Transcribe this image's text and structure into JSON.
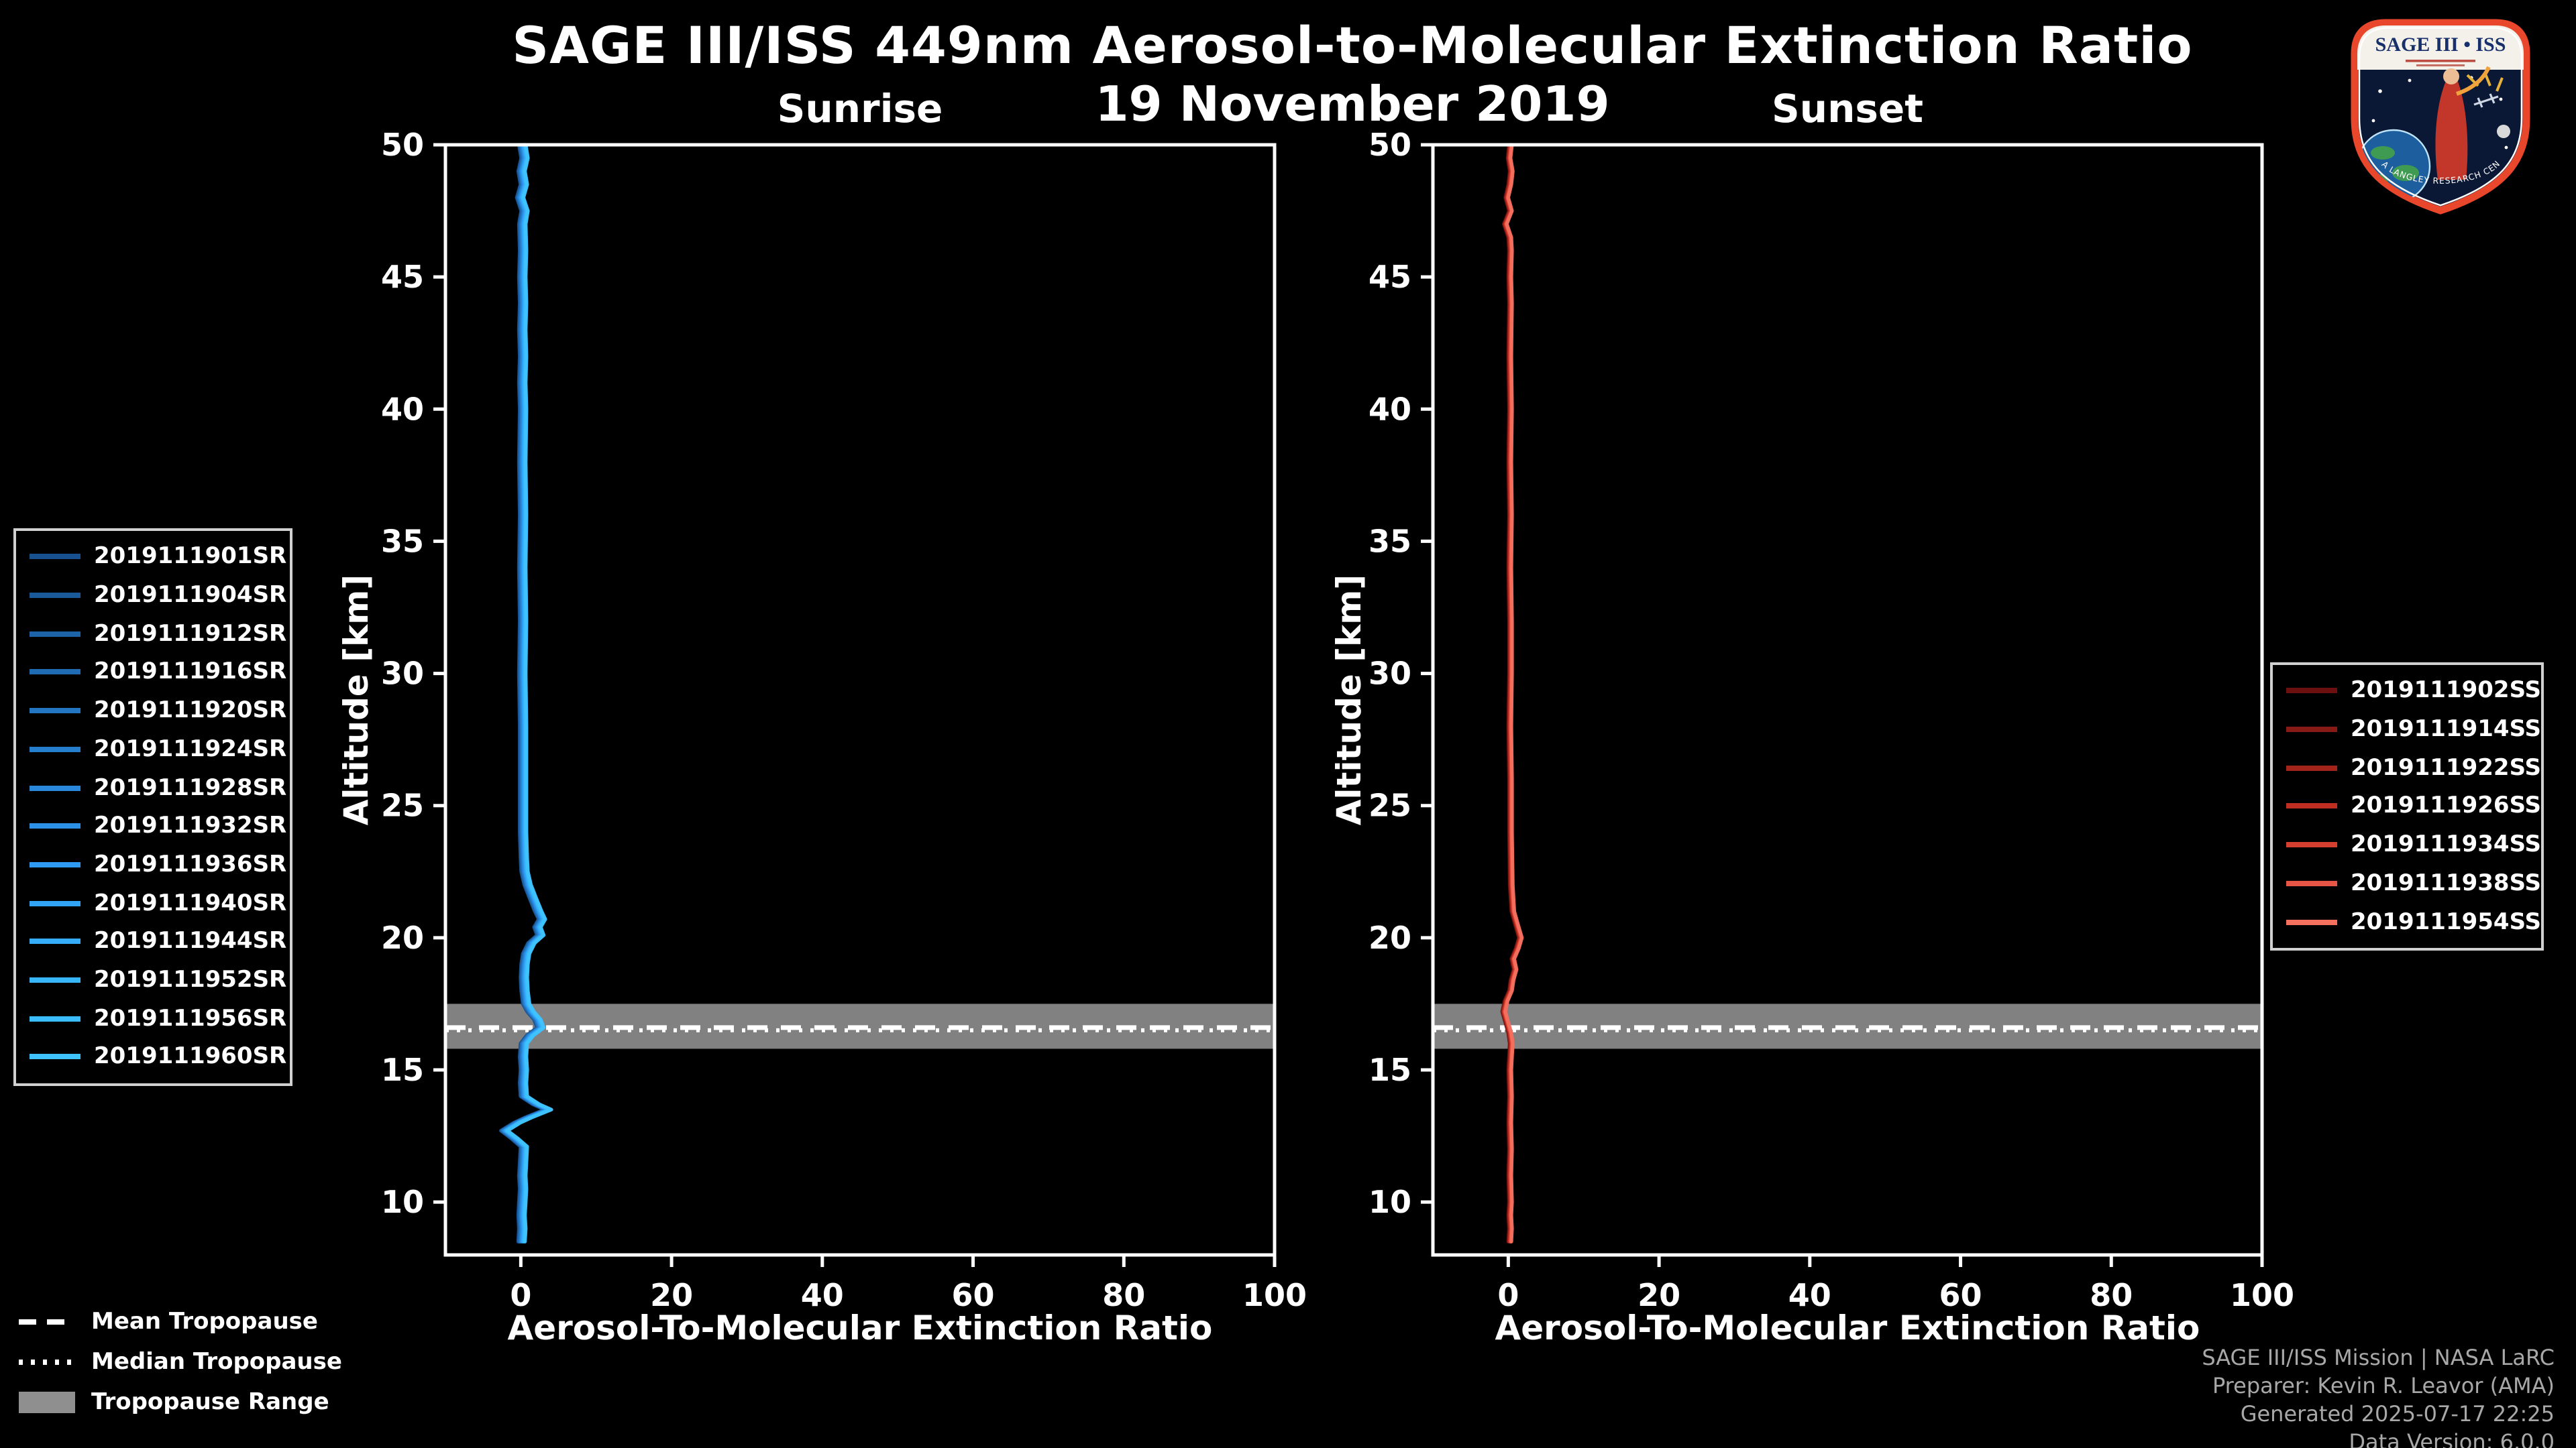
{
  "header": {
    "title": "SAGE III/ISS 449nm Aerosol-to-Molecular Extinction Ratio",
    "date": "19 November 2019"
  },
  "logo": {
    "title": "SAGE III • ISS",
    "band_text": "NASA LANGLEY RESEARCH CENTER"
  },
  "bottom_legend": {
    "mean": "Mean Tropopause",
    "median": "Median Tropopause",
    "range": "Tropopause Range"
  },
  "credits": {
    "lines": [
      "SAGE III/ISS Mission | NASA LaRC",
      "Preparer: Kevin R. Leavor (AMA)",
      "Generated 2025-07-17 22:25",
      "Data Version: 6.0.0"
    ]
  },
  "colors": {
    "background": "#000000",
    "foreground": "#ffffff",
    "tropopause_band": "#8f8f8f",
    "credit_text": "#a8a8a8"
  },
  "chart_data": [
    {
      "type": "line",
      "title": "Sunrise",
      "xlabel": "Aerosol-To-Molecular Extinction Ratio",
      "ylabel": "Altitude [km]",
      "xlim": [
        -10,
        100
      ],
      "ylim": [
        8,
        50
      ],
      "xticks": [
        0,
        20,
        40,
        60,
        80,
        100
      ],
      "yticks": [
        10,
        15,
        20,
        25,
        30,
        35,
        40,
        45,
        50
      ],
      "grid": false,
      "legend_position": "outside-left",
      "tropopause": {
        "mean_km": 16.6,
        "median_km": 16.5,
        "range_km": [
          15.8,
          17.5
        ]
      },
      "series": [
        {
          "name": "2019111901SR",
          "color": "#17518f"
        },
        {
          "name": "2019111904SR",
          "color": "#1a5a9b"
        },
        {
          "name": "2019111912SR",
          "color": "#1d63a8"
        },
        {
          "name": "2019111916SR",
          "color": "#206cb4"
        },
        {
          "name": "2019111920SR",
          "color": "#2376c1"
        },
        {
          "name": "2019111924SR",
          "color": "#267fcd"
        },
        {
          "name": "2019111928SR",
          "color": "#2988da"
        },
        {
          "name": "2019111932SR",
          "color": "#2c91e6"
        },
        {
          "name": "2019111936SR",
          "color": "#2f9af2"
        },
        {
          "name": "2019111940SR",
          "color": "#32a4f5"
        },
        {
          "name": "2019111944SR",
          "color": "#35adf8"
        },
        {
          "name": "2019111952SR",
          "color": "#38b6fa"
        },
        {
          "name": "2019111956SR",
          "color": "#3bbcfc"
        },
        {
          "name": "2019111960SR",
          "color": "#3fc3ff"
        }
      ],
      "profile": {
        "altitude_km": [
          50,
          49.5,
          49,
          48.5,
          48,
          47.5,
          47,
          46,
          45,
          44,
          43,
          42,
          41,
          40,
          38,
          36,
          34,
          32,
          30,
          28,
          26,
          24,
          23,
          22.5,
          22,
          21.5,
          21,
          20.7,
          20.4,
          20.1,
          19.8,
          19.4,
          19,
          18.5,
          18,
          17.5,
          17.2,
          16.9,
          16.6,
          16.3,
          16,
          15.5,
          15,
          14.5,
          14,
          13.7,
          13.5,
          13.2,
          13,
          12.7,
          12.4,
          12.1,
          11.5,
          11,
          10.5,
          10,
          9.5,
          9,
          8.5
        ],
        "ratio": [
          0.2,
          0.5,
          0.1,
          0.4,
          -0.1,
          0.5,
          0.2,
          0.3,
          0.2,
          0.3,
          0.2,
          0.3,
          0.2,
          0.3,
          0.2,
          0.3,
          0.2,
          0.3,
          0.2,
          0.3,
          0.3,
          0.3,
          0.4,
          0.5,
          0.9,
          1.6,
          2.3,
          2.8,
          2.2,
          2.6,
          1.4,
          0.7,
          0.5,
          0.4,
          0.5,
          0.7,
          1.3,
          2.2,
          2.6,
          1.2,
          0.4,
          0.3,
          0.4,
          0.3,
          0.4,
          2.0,
          3.6,
          1.0,
          -0.5,
          -2.2,
          -0.8,
          0.4,
          0.3,
          0.2,
          0.3,
          0.2,
          0.1,
          0.2,
          0.1
        ]
      }
    },
    {
      "type": "line",
      "title": "Sunset",
      "xlabel": "Aerosol-To-Molecular Extinction Ratio",
      "ylabel": "Altitude [km]",
      "xlim": [
        -10,
        100
      ],
      "ylim": [
        8,
        50
      ],
      "xticks": [
        0,
        20,
        40,
        60,
        80,
        100
      ],
      "yticks": [
        10,
        15,
        20,
        25,
        30,
        35,
        40,
        45,
        50
      ],
      "grid": false,
      "legend_position": "outside-right",
      "tropopause": {
        "mean_km": 16.6,
        "median_km": 16.5,
        "range_km": [
          15.8,
          17.5
        ]
      },
      "series": [
        {
          "name": "2019111902SS",
          "color": "#6b100e"
        },
        {
          "name": "2019111914SS",
          "color": "#871a14"
        },
        {
          "name": "2019111922SS",
          "color": "#a3241a"
        },
        {
          "name": "2019111926SS",
          "color": "#bf2e20"
        },
        {
          "name": "2019111934SS",
          "color": "#d53f30"
        },
        {
          "name": "2019111938SS",
          "color": "#e65546"
        },
        {
          "name": "2019111954SS",
          "color": "#f4705f"
        }
      ],
      "profile": {
        "altitude_km": [
          50,
          49.5,
          49,
          48.5,
          48,
          47.5,
          47,
          46.5,
          46,
          45,
          44,
          42,
          40,
          38,
          36,
          34,
          32,
          30,
          28,
          26,
          24,
          22,
          21,
          20.5,
          20,
          19.6,
          19.2,
          18.8,
          18.4,
          18,
          17.6,
          17.2,
          16.8,
          16.4,
          16,
          15.5,
          15,
          14,
          13,
          12,
          11,
          10,
          9.5,
          9,
          8.5
        ],
        "ratio": [
          0.3,
          0.1,
          0.4,
          0.2,
          -0.2,
          0.3,
          -0.4,
          0.2,
          0.3,
          0.2,
          0.3,
          0.2,
          0.3,
          0.2,
          0.3,
          0.2,
          0.3,
          0.3,
          0.2,
          0.3,
          0.3,
          0.4,
          0.6,
          1.1,
          1.6,
          1.2,
          0.6,
          0.9,
          0.5,
          0.3,
          -0.3,
          -0.6,
          -0.2,
          0.2,
          0.4,
          0.3,
          0.2,
          0.3,
          0.2,
          0.3,
          0.2,
          0.3,
          0.2,
          0.3,
          0.2
        ]
      }
    }
  ]
}
